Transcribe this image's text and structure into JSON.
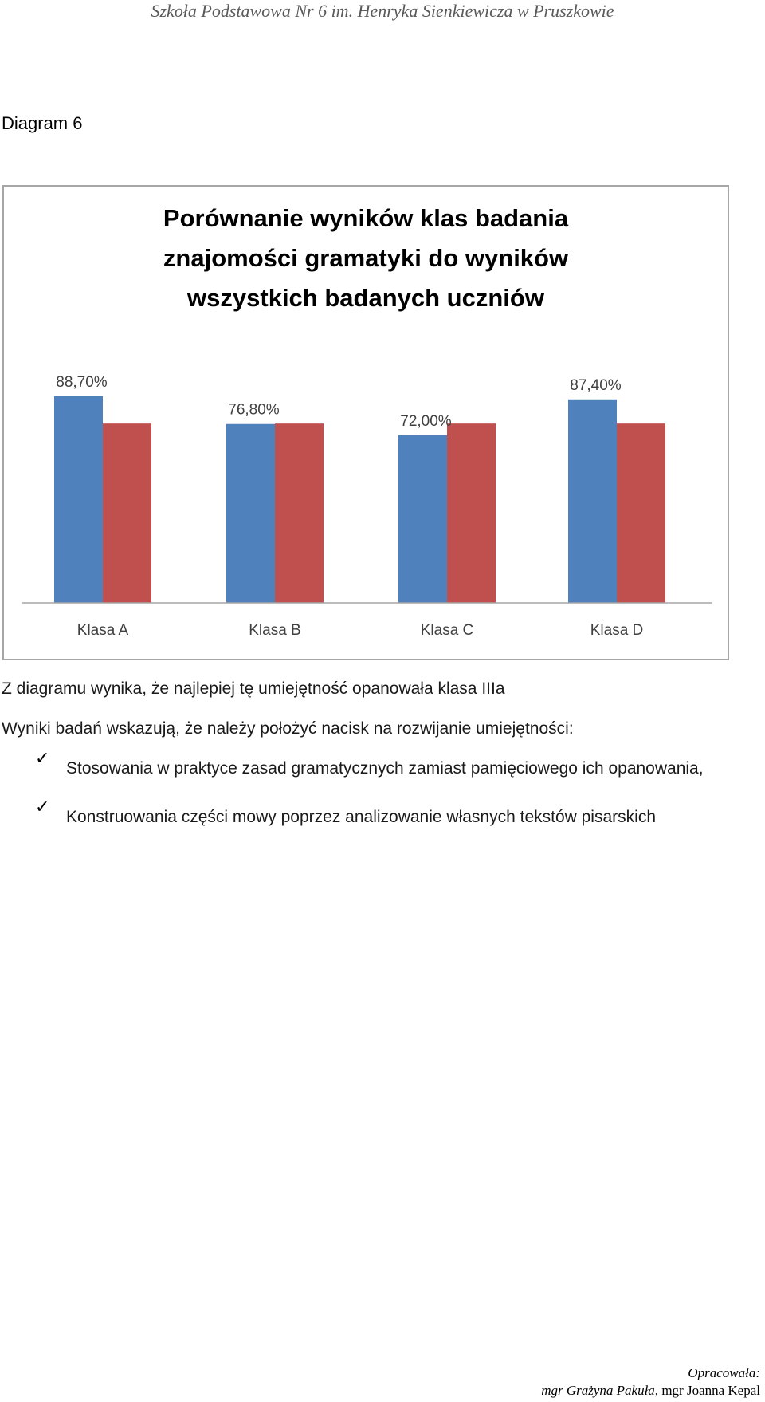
{
  "header": {
    "text": "Szkoła Podstawowa Nr 6 im. Henryka Sienkiewicza w Pruszkowie"
  },
  "section_label": "Diagram 6",
  "chart_data": {
    "type": "bar",
    "title_lines": [
      "Porównanie wyników klas badania",
      "znajomości gramatyki do wyników",
      "wszystkich badanych uczniów"
    ],
    "categories": [
      "Klasa A",
      "Klasa B",
      "Klasa C",
      "Klasa D"
    ],
    "series": [
      {
        "values": [
          88.7,
          76.8,
          72.0,
          87.4
        ],
        "labels": [
          "88,70%",
          "76,80%",
          "72,00%",
          "87,40%"
        ],
        "color": "#4f81bd"
      },
      {
        "values": [
          77.0,
          77.0,
          77.0,
          77.0
        ],
        "color": "#c0504d"
      }
    ],
    "ylim": [
      0,
      100
    ],
    "grid": false,
    "legend": "none"
  },
  "paragraphs": {
    "p1": "Z diagramu  wynika, że najlepiej tę umiejętność opanowała klasa IIIa",
    "p2": "Wyniki badań wskazują, że należy położyć nacisk na rozwijanie umiejętności:"
  },
  "list": [
    {
      "icon": "check-icon",
      "glyph": "✓",
      "text": "Stosowania w praktyce zasad gramatycznych zamiast pamięciowego ich opanowania,"
    },
    {
      "icon": "check-icon",
      "glyph": "✓",
      "text": "Konstruowania części mowy poprzez analizowanie własnych tekstów pisarskich"
    }
  ],
  "footer": {
    "line1": "Opracowała:",
    "line2a": "mgr Grażyna Pakuła,",
    "line2b": " mgr Joanna Kepal"
  }
}
